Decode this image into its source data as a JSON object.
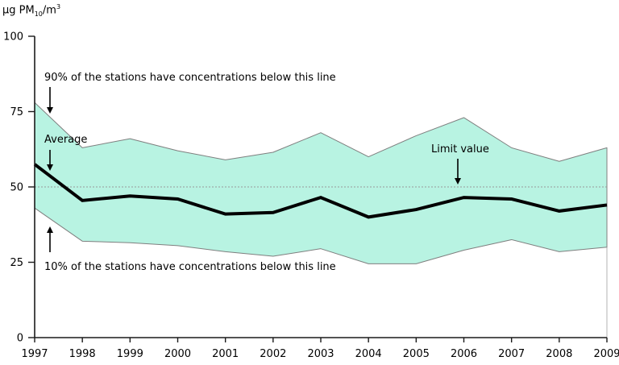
{
  "title": {
    "prefix": "µg PM",
    "sub": "10",
    "mid": "/m",
    "sup": "3"
  },
  "chart_data": {
    "type": "area",
    "title": "",
    "xlabel": "",
    "ylabel": "µg PM10/m3",
    "x": [
      1997,
      1998,
      1999,
      2000,
      2001,
      2002,
      2003,
      2004,
      2005,
      2006,
      2007,
      2008,
      2009
    ],
    "series": [
      {
        "name": "90th percentile of stations",
        "values": [
          78,
          63,
          66,
          62,
          59,
          61.5,
          68,
          60,
          67,
          73,
          63,
          58.5,
          63
        ]
      },
      {
        "name": "Average",
        "values": [
          57.5,
          45.5,
          47,
          46,
          41,
          41.5,
          46.5,
          40,
          42.5,
          46.5,
          46,
          42,
          44
        ]
      },
      {
        "name": "10th percentile of stations",
        "values": [
          43,
          32,
          31.5,
          30.5,
          28.5,
          27,
          29.5,
          24.5,
          24.5,
          29,
          32.5,
          28.5,
          30
        ]
      }
    ],
    "band": {
      "upper": "90th percentile of stations",
      "lower": "10th percentile of stations"
    },
    "limit_value": 50,
    "ylim": [
      0,
      100
    ],
    "yticks": [
      0,
      25,
      50,
      75,
      100
    ],
    "grid": false,
    "legend_position": "none",
    "annotations": [
      {
        "id": "p90",
        "text": "90% of the stations have concentrations below this line"
      },
      {
        "id": "avg",
        "text": "Average"
      },
      {
        "id": "limit",
        "text": "Limit value"
      },
      {
        "id": "p10",
        "text": "10% of the stations have concentrations below this line"
      }
    ],
    "colors": {
      "band_fill": "#b8f3e2",
      "band_stroke": "#7f7f7f",
      "average_line": "#000000",
      "limit_line": "#999999",
      "axis": "#1a1a1a",
      "text": "#000000",
      "right_border": "#b3b3b3"
    }
  }
}
